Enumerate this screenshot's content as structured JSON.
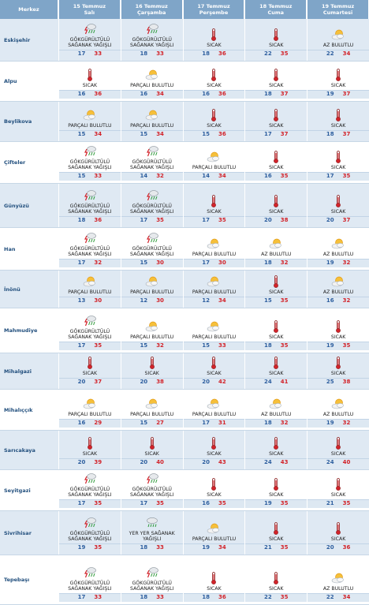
{
  "header": {
    "place_label": "Merkez",
    "days": [
      {
        "date": "15 Temmuz",
        "weekday": "Salı"
      },
      {
        "date": "16 Temmuz",
        "weekday": "Çarşamba"
      },
      {
        "date": "17 Temmuz",
        "weekday": "Perşembe"
      },
      {
        "date": "18 Temmuz",
        "weekday": "Cuma"
      },
      {
        "date": "19 Temmuz",
        "weekday": "Cumartesi"
      }
    ]
  },
  "rows": [
    {
      "name": "Eskişehir",
      "shaded": true,
      "days": [
        {
          "icon": "thunder-rain-icon",
          "cond": [
            "GÖKGÜRÜLTÜLÜ",
            "SAĞANAK YAĞIŞLI"
          ],
          "min": "17",
          "max": "33"
        },
        {
          "icon": "thunder-rain-icon",
          "cond": [
            "GÖKGÜRÜLTÜLÜ",
            "SAĞANAK YAĞIŞLI"
          ],
          "min": "18",
          "max": "33"
        },
        {
          "icon": "thermometer-icon",
          "cond": [
            "SICAK"
          ],
          "min": "18",
          "max": "36"
        },
        {
          "icon": "thermometer-icon",
          "cond": [
            "SICAK"
          ],
          "min": "22",
          "max": "35"
        },
        {
          "icon": "sun-cloud-icon",
          "cond": [
            "AZ BULUTLU"
          ],
          "min": "22",
          "max": "34"
        }
      ]
    },
    {
      "name": "Alpu",
      "shaded": false,
      "days": [
        {
          "icon": "thermometer-icon",
          "cond": [
            "SICAK"
          ],
          "min": "16",
          "max": "36"
        },
        {
          "icon": "sun-cloud-icon",
          "cond": [
            "PARÇALI BULUTLU"
          ],
          "min": "16",
          "max": "34"
        },
        {
          "icon": "thermometer-icon",
          "cond": [
            "SICAK"
          ],
          "min": "16",
          "max": "36"
        },
        {
          "icon": "thermometer-icon",
          "cond": [
            "SICAK"
          ],
          "min": "18",
          "max": "37"
        },
        {
          "icon": "thermometer-icon",
          "cond": [
            "SICAK"
          ],
          "min": "19",
          "max": "37"
        }
      ]
    },
    {
      "name": "Beylikova",
      "shaded": true,
      "days": [
        {
          "icon": "sun-cloud-icon",
          "cond": [
            "PARÇALI BULUTLU"
          ],
          "min": "15",
          "max": "34"
        },
        {
          "icon": "sun-cloud-icon",
          "cond": [
            "PARÇALI BULUTLU"
          ],
          "min": "15",
          "max": "34"
        },
        {
          "icon": "thermometer-icon",
          "cond": [
            "SICAK"
          ],
          "min": "15",
          "max": "36"
        },
        {
          "icon": "thermometer-icon",
          "cond": [
            "SICAK"
          ],
          "min": "17",
          "max": "37"
        },
        {
          "icon": "thermometer-icon",
          "cond": [
            "SICAK"
          ],
          "min": "18",
          "max": "37"
        }
      ]
    },
    {
      "name": "Çifteler",
      "shaded": false,
      "days": [
        {
          "icon": "thunder-rain-icon",
          "cond": [
            "GÖKGÜRÜLTÜLÜ",
            "SAĞANAK YAĞIŞLI"
          ],
          "min": "15",
          "max": "33"
        },
        {
          "icon": "thunder-rain-icon",
          "cond": [
            "GÖKGÜRÜLTÜLÜ",
            "SAĞANAK YAĞIŞLI"
          ],
          "min": "14",
          "max": "32"
        },
        {
          "icon": "sun-cloud-icon",
          "cond": [
            "PARÇALI BULUTLU"
          ],
          "min": "14",
          "max": "34"
        },
        {
          "icon": "thermometer-icon",
          "cond": [
            "SICAK"
          ],
          "min": "16",
          "max": "35"
        },
        {
          "icon": "thermometer-icon",
          "cond": [
            "SICAK"
          ],
          "min": "17",
          "max": "35"
        }
      ]
    },
    {
      "name": "Günyüzü",
      "shaded": true,
      "days": [
        {
          "icon": "thunder-rain-icon",
          "cond": [
            "GÖKGÜRÜLTÜLÜ",
            "SAĞANAK YAĞIŞLI"
          ],
          "min": "18",
          "max": "36"
        },
        {
          "icon": "thunder-rain-icon",
          "cond": [
            "GÖKGÜRÜLTÜLÜ",
            "SAĞANAK YAĞIŞLI"
          ],
          "min": "17",
          "max": "35"
        },
        {
          "icon": "thermometer-icon",
          "cond": [
            "SICAK"
          ],
          "min": "17",
          "max": "35"
        },
        {
          "icon": "thermometer-icon",
          "cond": [
            "SICAK"
          ],
          "min": "20",
          "max": "38"
        },
        {
          "icon": "thermometer-icon",
          "cond": [
            "SICAK"
          ],
          "min": "20",
          "max": "37"
        }
      ]
    },
    {
      "name": "Han",
      "shaded": false,
      "days": [
        {
          "icon": "thunder-rain-icon",
          "cond": [
            "GÖKGÜRÜLTÜLÜ",
            "SAĞANAK YAĞIŞLI"
          ],
          "min": "17",
          "max": "32"
        },
        {
          "icon": "thunder-rain-icon",
          "cond": [
            "GÖKGÜRÜLTÜLÜ",
            "SAĞANAK YAĞIŞLI"
          ],
          "min": "15",
          "max": "30"
        },
        {
          "icon": "sun-cloud-icon",
          "cond": [
            "PARÇALI BULUTLU"
          ],
          "min": "17",
          "max": "30"
        },
        {
          "icon": "sun-cloud-icon",
          "cond": [
            "AZ BULUTLU"
          ],
          "min": "18",
          "max": "32"
        },
        {
          "icon": "sun-cloud-icon",
          "cond": [
            "AZ BULUTLU"
          ],
          "min": "19",
          "max": "32"
        }
      ]
    },
    {
      "name": "İnönü",
      "shaded": true,
      "days": [
        {
          "icon": "sun-cloud-icon",
          "cond": [
            "PARÇALI BULUTLU"
          ],
          "min": "13",
          "max": "30"
        },
        {
          "icon": "sun-cloud-icon",
          "cond": [
            "PARÇALI BULUTLU"
          ],
          "min": "12",
          "max": "30"
        },
        {
          "icon": "sun-cloud-icon",
          "cond": [
            "PARÇALI BULUTLU"
          ],
          "min": "12",
          "max": "34"
        },
        {
          "icon": "thermometer-icon",
          "cond": [
            "SICAK"
          ],
          "min": "15",
          "max": "35"
        },
        {
          "icon": "sun-cloud-icon",
          "cond": [
            "AZ BULUTLU"
          ],
          "min": "16",
          "max": "32"
        }
      ]
    },
    {
      "name": "Mahmudiye",
      "shaded": false,
      "days": [
        {
          "icon": "thunder-rain-icon",
          "cond": [
            "GÖKGÜRÜLTÜLÜ",
            "SAĞANAK YAĞIŞLI"
          ],
          "min": "17",
          "max": "35"
        },
        {
          "icon": "sun-cloud-icon",
          "cond": [
            "PARÇALI BULUTLU"
          ],
          "min": "15",
          "max": "32"
        },
        {
          "icon": "sun-cloud-icon",
          "cond": [
            "PARÇALI BULUTLU"
          ],
          "min": "15",
          "max": "33"
        },
        {
          "icon": "thermometer-icon",
          "cond": [
            "SICAK"
          ],
          "min": "18",
          "max": "35"
        },
        {
          "icon": "thermometer-icon",
          "cond": [
            "SICAK"
          ],
          "min": "19",
          "max": "35"
        }
      ]
    },
    {
      "name": "Mihalgazi",
      "shaded": true,
      "days": [
        {
          "icon": "thermometer-icon",
          "cond": [
            "SICAK"
          ],
          "min": "20",
          "max": "37"
        },
        {
          "icon": "thermometer-icon",
          "cond": [
            "SICAK"
          ],
          "min": "20",
          "max": "38"
        },
        {
          "icon": "thermometer-icon",
          "cond": [
            "SICAK"
          ],
          "min": "20",
          "max": "42"
        },
        {
          "icon": "thermometer-icon",
          "cond": [
            "SICAK"
          ],
          "min": "24",
          "max": "41"
        },
        {
          "icon": "thermometer-icon",
          "cond": [
            "SICAK"
          ],
          "min": "25",
          "max": "38"
        }
      ]
    },
    {
      "name": "Mihalıççık",
      "shaded": false,
      "days": [
        {
          "icon": "sun-cloud-icon",
          "cond": [
            "PARÇALI BULUTLU"
          ],
          "min": "16",
          "max": "29"
        },
        {
          "icon": "sun-cloud-icon",
          "cond": [
            "PARÇALI BULUTLU"
          ],
          "min": "15",
          "max": "27"
        },
        {
          "icon": "sun-cloud-icon",
          "cond": [
            "PARÇALI BULUTLU"
          ],
          "min": "17",
          "max": "31"
        },
        {
          "icon": "sun-cloud-icon",
          "cond": [
            "AZ BULUTLU"
          ],
          "min": "18",
          "max": "32"
        },
        {
          "icon": "sun-cloud-icon",
          "cond": [
            "AZ BULUTLU"
          ],
          "min": "19",
          "max": "32"
        }
      ]
    },
    {
      "name": "Sarıcakaya",
      "shaded": true,
      "days": [
        {
          "icon": "thermometer-icon",
          "cond": [
            "SICAK"
          ],
          "min": "20",
          "max": "39"
        },
        {
          "icon": "thermometer-icon",
          "cond": [
            "SICAK"
          ],
          "min": "20",
          "max": "40"
        },
        {
          "icon": "thermometer-icon",
          "cond": [
            "SICAK"
          ],
          "min": "20",
          "max": "43"
        },
        {
          "icon": "thermometer-icon",
          "cond": [
            "SICAK"
          ],
          "min": "24",
          "max": "43"
        },
        {
          "icon": "thermometer-icon",
          "cond": [
            "SICAK"
          ],
          "min": "24",
          "max": "40"
        }
      ]
    },
    {
      "name": "Seyitgazi",
      "shaded": false,
      "days": [
        {
          "icon": "thunder-rain-icon",
          "cond": [
            "GÖKGÜRÜLTÜLÜ",
            "SAĞANAK YAĞIŞLI"
          ],
          "min": "17",
          "max": "35"
        },
        {
          "icon": "thunder-rain-icon",
          "cond": [
            "GÖKGÜRÜLTÜLÜ",
            "SAĞANAK YAĞIŞLI"
          ],
          "min": "17",
          "max": "35"
        },
        {
          "icon": "thermometer-icon",
          "cond": [
            "SICAK"
          ],
          "min": "16",
          "max": "35"
        },
        {
          "icon": "thermometer-icon",
          "cond": [
            "SICAK"
          ],
          "min": "19",
          "max": "35"
        },
        {
          "icon": "thermometer-icon",
          "cond": [
            "SICAK"
          ],
          "min": "21",
          "max": "35"
        }
      ]
    },
    {
      "name": "Sivrihisar",
      "shaded": true,
      "days": [
        {
          "icon": "thunder-rain-icon",
          "cond": [
            "GÖKGÜRÜLTÜLÜ",
            "SAĞANAK YAĞIŞLI"
          ],
          "min": "19",
          "max": "35"
        },
        {
          "icon": "rain-cloud-icon",
          "cond": [
            "YER YER SAĞANAK",
            "YAĞIŞLI"
          ],
          "min": "18",
          "max": "33"
        },
        {
          "icon": "sun-cloud-icon",
          "cond": [
            "PARÇALI BULUTLU"
          ],
          "min": "19",
          "max": "34"
        },
        {
          "icon": "thermometer-icon",
          "cond": [
            "SICAK"
          ],
          "min": "21",
          "max": "35"
        },
        {
          "icon": "thermometer-icon",
          "cond": [
            "SICAK"
          ],
          "min": "20",
          "max": "36"
        }
      ]
    },
    {
      "name": "Tepebaşı",
      "shaded": false,
      "days": [
        {
          "icon": "thunder-rain-icon",
          "cond": [
            "GÖKGÜRÜLTÜLÜ",
            "SAĞANAK YAĞIŞLI"
          ],
          "min": "17",
          "max": "33"
        },
        {
          "icon": "thunder-rain-icon",
          "cond": [
            "GÖKGÜRÜLTÜLÜ",
            "SAĞANAK YAĞIŞLI"
          ],
          "min": "18",
          "max": "33"
        },
        {
          "icon": "thermometer-icon",
          "cond": [
            "SICAK"
          ],
          "min": "18",
          "max": "36"
        },
        {
          "icon": "thermometer-icon",
          "cond": [
            "SICAK"
          ],
          "min": "22",
          "max": "35"
        },
        {
          "icon": "sun-cloud-icon",
          "cond": [
            "AZ BULUTLU"
          ],
          "min": "22",
          "max": "34"
        }
      ]
    }
  ]
}
